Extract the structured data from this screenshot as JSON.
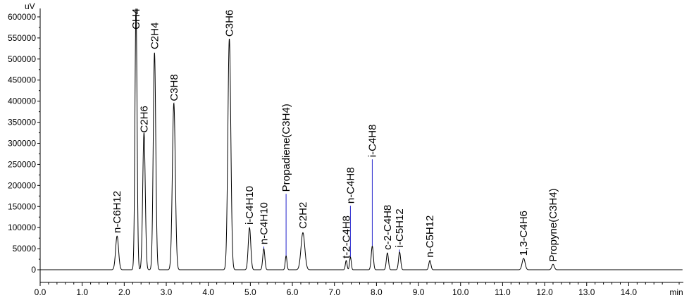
{
  "chart_data": {
    "type": "line",
    "title": "",
    "xlabel": "",
    "ylabel": "",
    "y_unit": "uV",
    "x_unit": "min",
    "xlim": [
      0.0,
      15.3
    ],
    "ylim": [
      -30000,
      620000
    ],
    "x_ticks": [
      "0.0",
      "1.0",
      "2.0",
      "3.0",
      "4.0",
      "5.0",
      "6.0",
      "7.0",
      "8.0",
      "9.0",
      "10.0",
      "11.0",
      "12.0",
      "13.0",
      "14.0"
    ],
    "y_ticks": [
      "0",
      "50000",
      "100000",
      "150000",
      "200000",
      "250000",
      "300000",
      "350000",
      "400000",
      "450000",
      "500000",
      "550000",
      "600000"
    ],
    "grid": false,
    "baseline": 0,
    "colors": {
      "trace": "#000000",
      "marker": "#2222cc"
    },
    "peaks": [
      {
        "label": "n-C6H12",
        "rt": 1.83,
        "height": 80000,
        "width": 0.035,
        "label_y": 82000,
        "marker": false
      },
      {
        "label": "CH4",
        "rt": 2.28,
        "height": 620000,
        "width": 0.025,
        "label_y": 565000,
        "marker": false
      },
      {
        "label": "C2H6",
        "rt": 2.47,
        "height": 325000,
        "width": 0.03,
        "label_y": 320000,
        "marker": false
      },
      {
        "label": "C2H4",
        "rt": 2.72,
        "height": 515000,
        "width": 0.03,
        "label_y": 518000,
        "marker": false
      },
      {
        "label": "C3H8",
        "rt": 3.18,
        "height": 395000,
        "width": 0.035,
        "label_y": 395000,
        "marker": false
      },
      {
        "label": "C3H6",
        "rt": 4.5,
        "height": 548000,
        "width": 0.035,
        "label_y": 548000,
        "marker": false
      },
      {
        "label": "i-C4H10",
        "rt": 4.98,
        "height": 100000,
        "width": 0.03,
        "label_y": 102000,
        "marker": false
      },
      {
        "label": "n-C4H10",
        "rt": 5.32,
        "height": 50000,
        "width": 0.025,
        "label_y": 55000,
        "marker": true
      },
      {
        "label": "Propadiene(C3H4)",
        "rt": 5.85,
        "height": 33000,
        "width": 0.02,
        "label_y": 180000,
        "marker": true
      },
      {
        "label": "C2H2",
        "rt": 6.25,
        "height": 88000,
        "width": 0.045,
        "label_y": 92000,
        "marker": false
      },
      {
        "label": "t-2-C4H8",
        "rt": 7.28,
        "height": 22000,
        "width": 0.02,
        "label_y": 22000,
        "marker": false
      },
      {
        "label": "n-C4H8",
        "rt": 7.38,
        "height": 30000,
        "width": 0.02,
        "label_y": 152000,
        "marker": true
      },
      {
        "label": "i-C4H8",
        "rt": 7.9,
        "height": 56000,
        "width": 0.025,
        "label_y": 262000,
        "marker": true
      },
      {
        "label": "c-2-C4H8",
        "rt": 8.26,
        "height": 40000,
        "width": 0.025,
        "label_y": 42000,
        "marker": false
      },
      {
        "label": "i-C5H12",
        "rt": 8.55,
        "height": 42000,
        "width": 0.025,
        "label_y": 48000,
        "marker": true
      },
      {
        "label": "n-C5H12",
        "rt": 9.27,
        "height": 22000,
        "width": 0.025,
        "label_y": 24000,
        "marker": false
      },
      {
        "label": "1,3-C4H6",
        "rt": 11.5,
        "height": 27000,
        "width": 0.035,
        "label_y": 28000,
        "marker": false
      },
      {
        "label": "Propyne(C3H4)",
        "rt": 12.2,
        "height": 13000,
        "width": 0.03,
        "label_y": 14000,
        "marker": false
      }
    ]
  }
}
